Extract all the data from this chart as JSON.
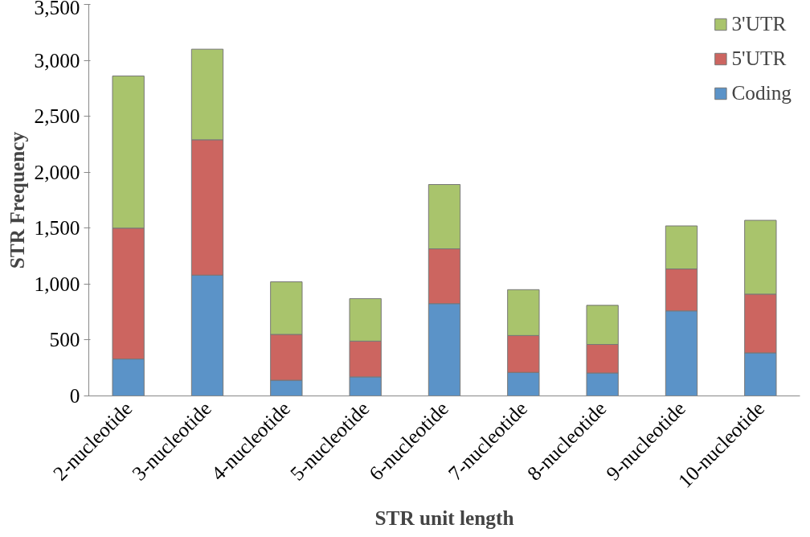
{
  "chart_data": {
    "type": "bar",
    "stacked": true,
    "xlabel": "STR unit length",
    "ylabel": "STR Frequency",
    "categories": [
      "2-nucleotide",
      "3-nucleotide",
      "4-nucleotide",
      "5-nucleotide",
      "6-nucleotide",
      "7-nucleotide",
      "8-nucleotide",
      "9-nucleotide",
      "10-nucleotide"
    ],
    "series": [
      {
        "name": "Coding",
        "color": "#5b93c8",
        "values": [
          330,
          1080,
          140,
          170,
          825,
          210,
          205,
          760,
          385
        ]
      },
      {
        "name": "5'UTR",
        "color": "#cc6560",
        "values": [
          1170,
          1210,
          410,
          320,
          490,
          330,
          255,
          375,
          525
        ]
      },
      {
        "name": "3'UTR",
        "color": "#a9c46c",
        "values": [
          1360,
          810,
          470,
          380,
          575,
          410,
          350,
          385,
          660
        ]
      }
    ],
    "ylim": [
      0,
      3500
    ],
    "yticks": [
      0,
      {
        "value": 500,
        "label": "500"
      },
      {
        "value": 1000,
        "label": "1,000"
      },
      {
        "value": 1500,
        "label": "1,500"
      },
      {
        "value": 2000,
        "label": "2,000"
      },
      {
        "value": 2500,
        "label": "2,500"
      },
      {
        "value": 3000,
        "label": "3,000"
      },
      {
        "value": 3500,
        "label": "3,500"
      }
    ],
    "grid": false,
    "legend": "top right"
  }
}
